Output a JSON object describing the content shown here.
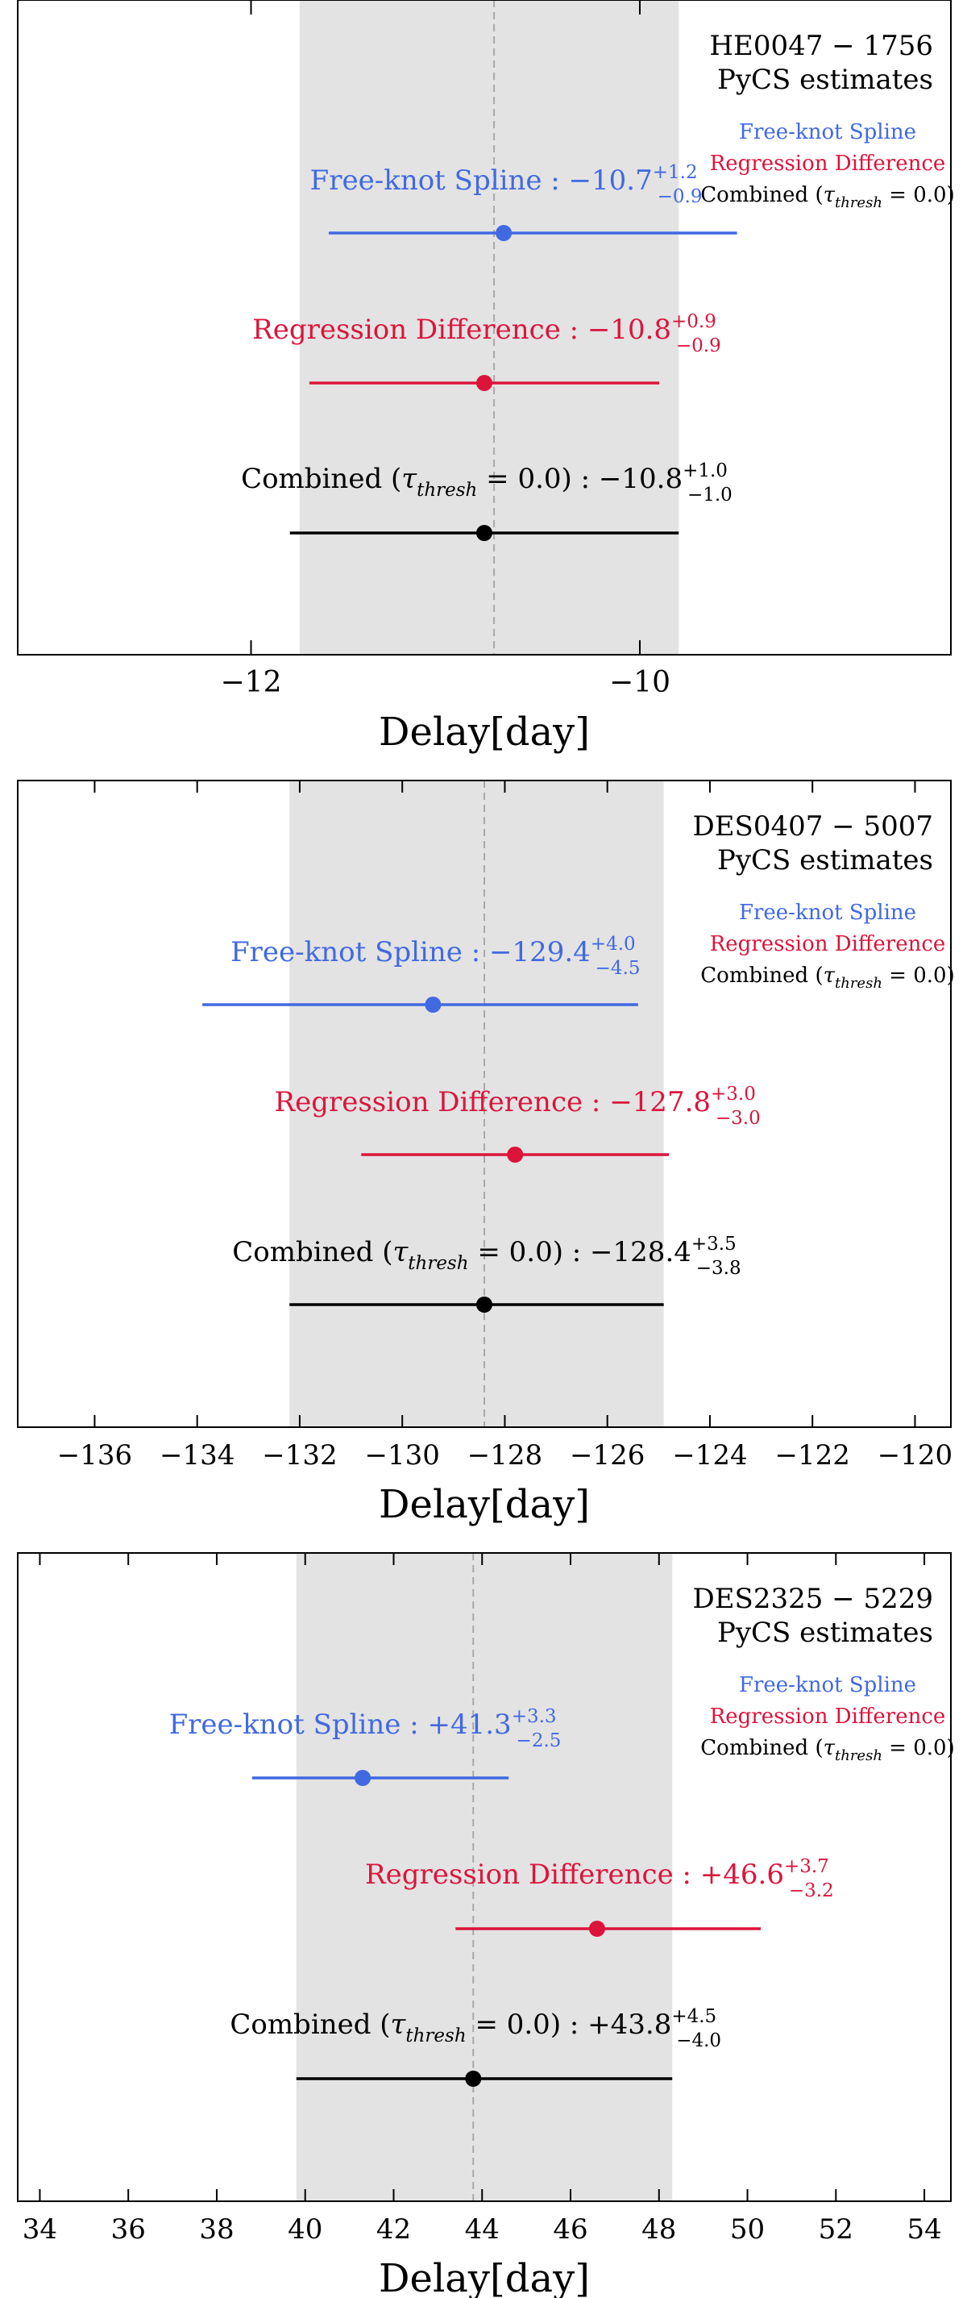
{
  "chart_data": [
    {
      "type": "errorbar",
      "title_line1": "HE0047 − 1756",
      "title_line2": "PyCS estimates",
      "xlabel": "Delay[day]",
      "xlim": [
        -13.2,
        -8.4
      ],
      "xticks": [
        -12,
        -10
      ],
      "xtick_labels": [
        "−12",
        "−10"
      ],
      "shaded_range": [
        -11.75,
        -9.8
      ],
      "dashed_line_x": -10.75,
      "legend": {
        "placement": "top-right",
        "entries": [
          {
            "label": "Free-knot Spline",
            "color": "#4169e1"
          },
          {
            "label": "Regression Difference",
            "color": "#dc143c"
          },
          {
            "label": "Combined (τthresh = 0.0)",
            "color": "#000000"
          }
        ]
      },
      "series": [
        {
          "name": "Free-knot Spline",
          "label": "Free-knot Spline : −10.7",
          "sup": "+1.2",
          "sub": "−0.9",
          "color": "#4169e1",
          "value": -10.7,
          "err_minus": 0.9,
          "err_plus": 1.2
        },
        {
          "name": "Regression Difference",
          "label": "Regression Difference : −10.8",
          "sup": "+0.9",
          "sub": "−0.9",
          "color": "#dc143c",
          "value": -10.8,
          "err_minus": 0.9,
          "err_plus": 0.9
        },
        {
          "name": "Combined (τthresh = 0.0)",
          "label": "Combined (τthresh = 0.0) : −10.8",
          "sup": "+1.0",
          "sub": "−1.0",
          "color": "#000000",
          "value": -10.8,
          "err_minus": 1.0,
          "err_plus": 1.0
        }
      ]
    },
    {
      "type": "errorbar",
      "title_line1": "DES0407 − 5007",
      "title_line2": "PyCS estimates",
      "xlabel": "Delay[day]",
      "xlim": [
        -137.5,
        -119.3
      ],
      "xticks": [
        -136,
        -134,
        -132,
        -130,
        -128,
        -126,
        -124,
        -122,
        -120
      ],
      "xtick_labels": [
        "−136",
        "−134",
        "−132",
        "−130",
        "−128",
        "−126",
        "−124",
        "−122",
        "−120"
      ],
      "shaded_range": [
        -132.2,
        -124.9
      ],
      "dashed_line_x": -128.4,
      "legend": {
        "placement": "top-right",
        "entries": [
          {
            "label": "Free-knot Spline",
            "color": "#4169e1"
          },
          {
            "label": "Regression Difference",
            "color": "#dc143c"
          },
          {
            "label": "Combined (τthresh = 0.0)",
            "color": "#000000"
          }
        ]
      },
      "series": [
        {
          "name": "Free-knot Spline",
          "label": "Free-knot Spline : −129.4",
          "sup": "+4.0",
          "sub": "−4.5",
          "color": "#4169e1",
          "value": -129.4,
          "err_minus": 4.5,
          "err_plus": 4.0
        },
        {
          "name": "Regression Difference",
          "label": "Regression Difference : −127.8",
          "sup": "+3.0",
          "sub": "−3.0",
          "color": "#dc143c",
          "value": -127.8,
          "err_minus": 3.0,
          "err_plus": 3.0
        },
        {
          "name": "Combined (τthresh = 0.0)",
          "label": "Combined (τthresh = 0.0) : −128.4",
          "sup": "+3.5",
          "sub": "−3.8",
          "color": "#000000",
          "value": -128.4,
          "err_minus": 3.8,
          "err_plus": 3.5
        }
      ]
    },
    {
      "type": "errorbar",
      "title_line1": "DES2325 − 5229",
      "title_line2": "PyCS estimates",
      "xlabel": "Delay[day]",
      "xlim": [
        33.5,
        54.6
      ],
      "xticks": [
        34,
        36,
        38,
        40,
        42,
        44,
        46,
        48,
        50,
        52,
        54
      ],
      "xtick_labels": [
        "34",
        "36",
        "38",
        "40",
        "42",
        "44",
        "46",
        "48",
        "50",
        "52",
        "54"
      ],
      "shaded_range": [
        39.8,
        48.3
      ],
      "dashed_line_x": 43.8,
      "legend": {
        "placement": "top-right",
        "entries": [
          {
            "label": "Free-knot Spline",
            "color": "#4169e1"
          },
          {
            "label": "Regression Difference",
            "color": "#dc143c"
          },
          {
            "label": "Combined (τthresh = 0.0)",
            "color": "#000000"
          }
        ]
      },
      "series": [
        {
          "name": "Free-knot Spline",
          "label": "Free-knot Spline : +41.3",
          "sup": "+3.3",
          "sub": "−2.5",
          "color": "#4169e1",
          "value": 41.3,
          "err_minus": 2.5,
          "err_plus": 3.3
        },
        {
          "name": "Regression Difference",
          "label": "Regression Difference : +46.6",
          "sup": "+3.7",
          "sub": "−3.2",
          "color": "#dc143c",
          "value": 46.6,
          "err_minus": 3.2,
          "err_plus": 3.7
        },
        {
          "name": "Combined (τthresh = 0.0)",
          "label": "Combined (τthresh = 0.0) : +43.8",
          "sup": "+4.5",
          "sub": "−4.0",
          "color": "#000000",
          "value": 43.8,
          "err_minus": 4.0,
          "err_plus": 4.5
        }
      ]
    }
  ]
}
